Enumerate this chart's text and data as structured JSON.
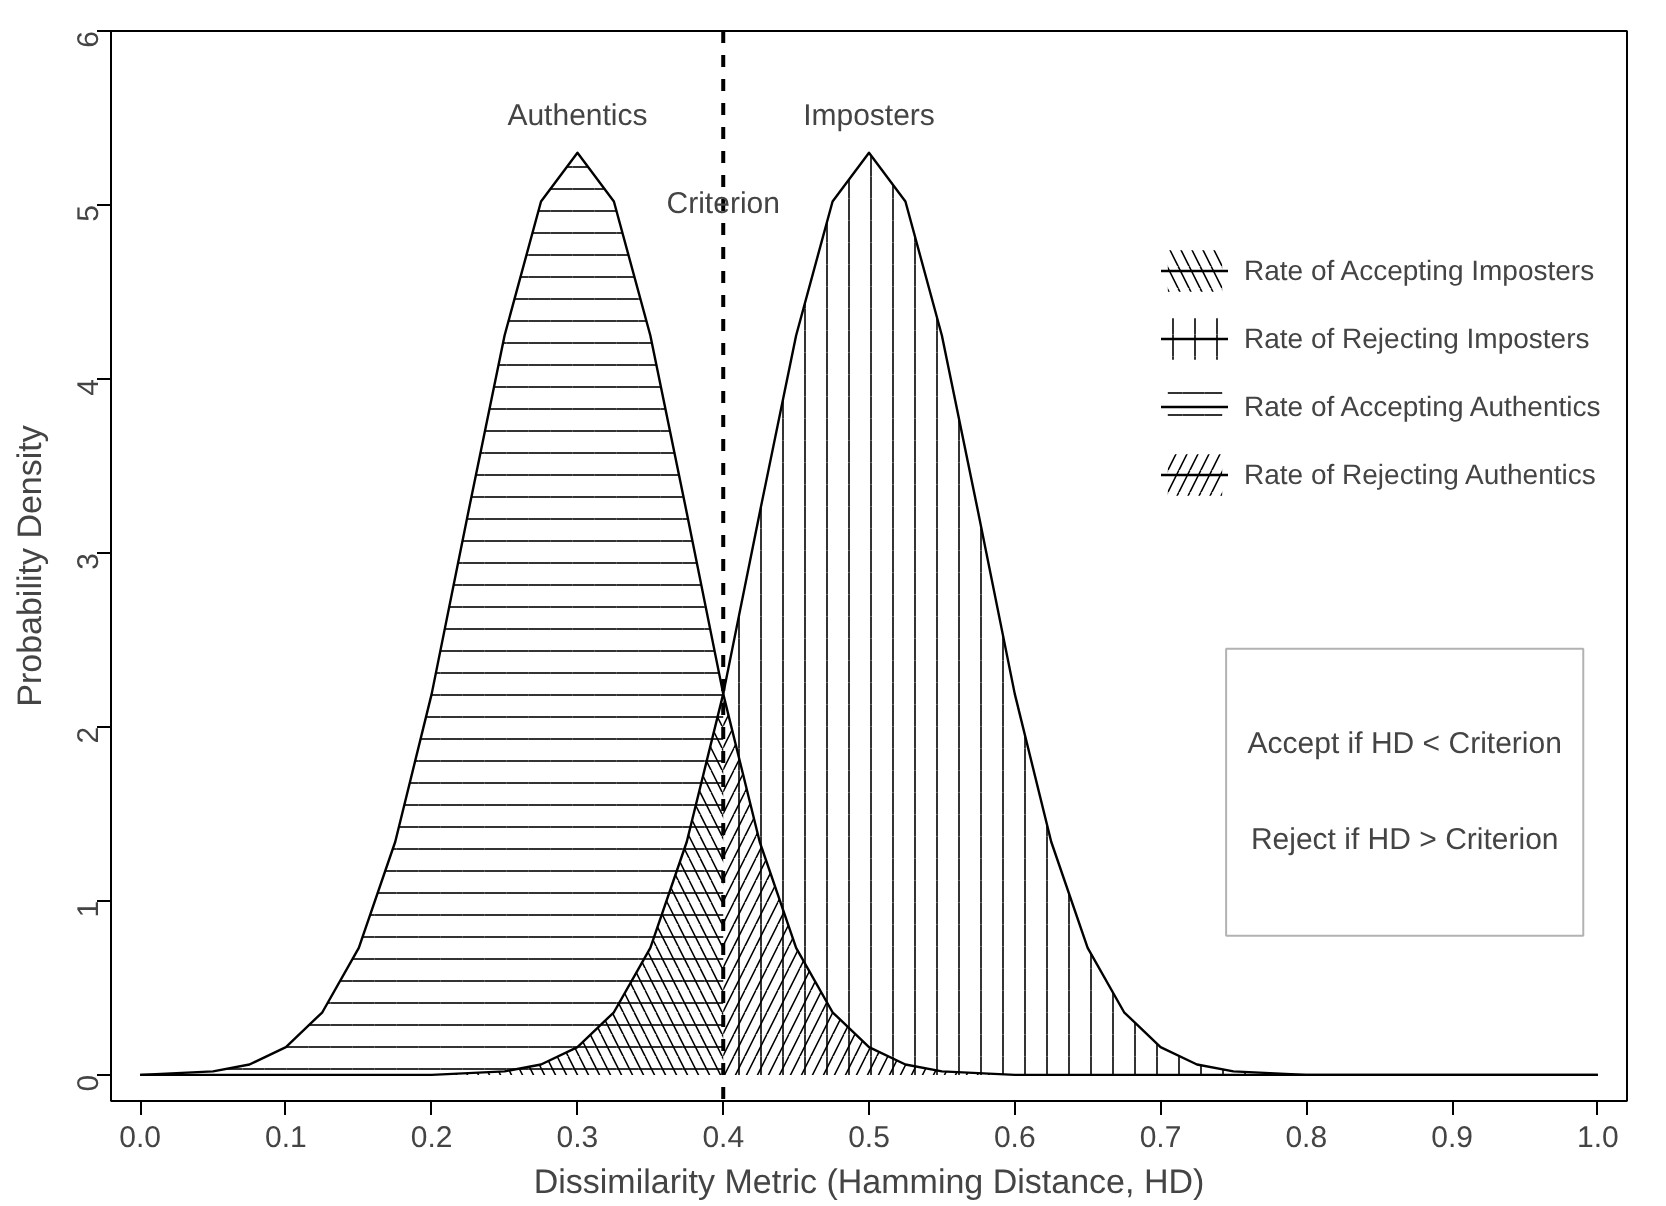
{
  "chart_data": {
    "type": "area",
    "xlabel": "Dissimilarity Metric (Hamming Distance, HD)",
    "ylabel": "Probability Density",
    "series": [
      {
        "name": "Rate of Accepting Imposters",
        "color": "#000000",
        "x": [
          0.0,
          0.2,
          0.225,
          0.25,
          0.275,
          0.3,
          0.325,
          0.35,
          0.375,
          0.4
        ],
        "values": [
          0,
          0.0,
          0.01,
          0.02,
          0.06,
          0.16,
          0.36,
          0.73,
          1.34,
          2.19
        ]
      },
      {
        "name": "Rate of Rejecting Imposters",
        "color": "#000000",
        "x": [
          0.4,
          0.425,
          0.45,
          0.475,
          0.5,
          0.525,
          0.55,
          0.575,
          0.6,
          0.625,
          0.65,
          0.675,
          0.7,
          0.725,
          0.75,
          0.775,
          0.8,
          1.0
        ],
        "values": [
          2.19,
          3.23,
          4.25,
          5.02,
          5.3,
          5.02,
          4.25,
          3.23,
          2.19,
          1.34,
          0.73,
          0.36,
          0.16,
          0.06,
          0.02,
          0.01,
          0.0,
          0
        ]
      },
      {
        "name": "Rate of Accepting Authentics",
        "color": "#000000",
        "x": [
          0.0,
          0.025,
          0.05,
          0.075,
          0.1,
          0.125,
          0.15,
          0.175,
          0.2,
          0.225,
          0.25,
          0.275,
          0.3,
          0.325,
          0.35,
          0.375,
          0.4
        ],
        "values": [
          0.0,
          0.01,
          0.02,
          0.06,
          0.16,
          0.36,
          0.73,
          1.34,
          2.19,
          3.23,
          4.25,
          5.02,
          5.3,
          5.02,
          4.25,
          3.23,
          2.19
        ]
      },
      {
        "name": "Rate of Rejecting Authentics",
        "color": "#000000",
        "x": [
          0.4,
          0.425,
          0.45,
          0.475,
          0.5,
          0.525,
          0.55,
          0.575,
          0.6,
          1.0
        ],
        "values": [
          2.19,
          1.34,
          0.73,
          0.36,
          0.16,
          0.06,
          0.02,
          0.01,
          0.0,
          0
        ]
      }
    ],
    "xlim": [
      -0.02,
      1.02
    ],
    "xticks": [
      {
        "value": 0.0,
        "label": "0.0"
      },
      {
        "value": 0.1,
        "label": "0.1"
      },
      {
        "value": 0.2,
        "label": "0.2"
      },
      {
        "value": 0.3,
        "label": "0.3"
      },
      {
        "value": 0.4,
        "label": "0.4"
      },
      {
        "value": 0.5,
        "label": "0.5"
      },
      {
        "value": 0.6,
        "label": "0.6"
      },
      {
        "value": 0.7,
        "label": "0.7"
      },
      {
        "value": 0.8,
        "label": "0.8"
      },
      {
        "value": 0.9,
        "label": "0.9"
      },
      {
        "value": 1.0,
        "label": "1.0"
      }
    ],
    "ylim": [
      -0.15,
      6
    ],
    "yticks": [
      0,
      1,
      2,
      3,
      4,
      5,
      6
    ],
    "ref_lines": [
      {
        "axis": "x",
        "value": 0.4,
        "label": "Criterion",
        "color": "#000000",
        "line_style": "dashed"
      }
    ],
    "annotations": [
      {
        "text": "Authentics",
        "x": 0.3,
        "y": 5.3
      },
      {
        "text": "Imposters",
        "x": 0.5,
        "y": 5.3
      },
      "Accept if HD < Criterion",
      "Reject if HD > Criterion"
    ],
    "legend": "top right",
    "grid": false,
    "marker": "none",
    "line_style": "solid"
  }
}
